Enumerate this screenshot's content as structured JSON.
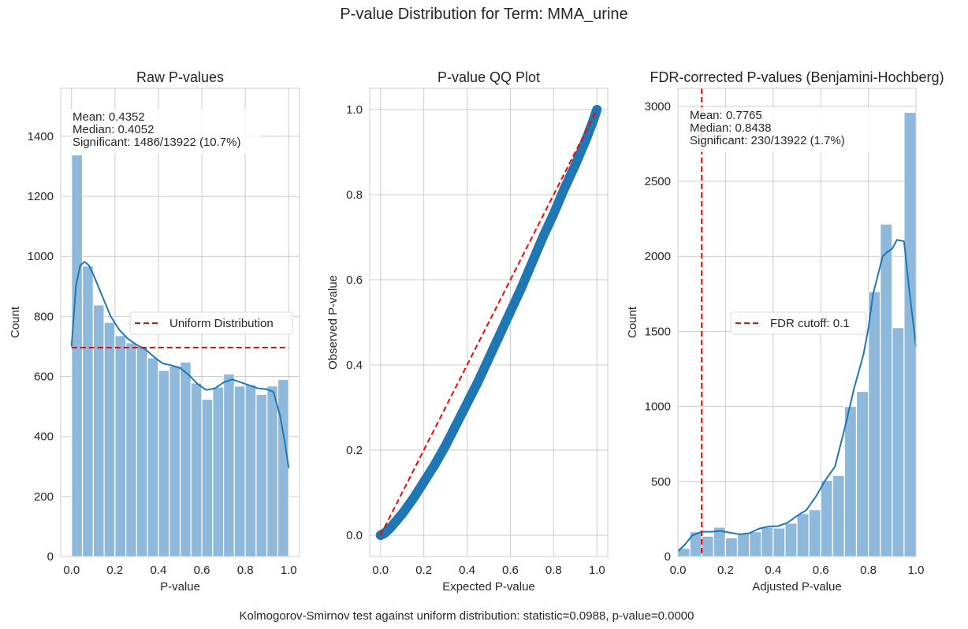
{
  "suptitle": "P-value Distribution for Term: MMA_urine",
  "footer": "Kolmogorov-Smirnov test against uniform distribution: statistic=0.0988, p-value=0.0000",
  "colors": {
    "bar": "#8fb9db",
    "kde": "#1f77b4",
    "ref": "#ff0000",
    "grid": "#cccccc",
    "scatter": "#1f77b4"
  },
  "chart_data": [
    {
      "type": "bar",
      "title": "Raw P-values",
      "xlabel": "P-value",
      "ylabel": "Count",
      "xlim": [
        -0.05,
        1.05
      ],
      "ylim": [
        0,
        1560
      ],
      "xticks": [
        "0.0",
        "0.2",
        "0.4",
        "0.6",
        "0.8",
        "1.0"
      ],
      "xtick_values": [
        0,
        0.2,
        0.4,
        0.6,
        0.8,
        1.0
      ],
      "yticks": [
        "0",
        "200",
        "400",
        "600",
        "800",
        "1000",
        "1200",
        "1400"
      ],
      "ytick_values": [
        0,
        200,
        400,
        600,
        800,
        1000,
        1200,
        1400
      ],
      "bin_edges_range": [
        0,
        1
      ],
      "values": [
        1338,
        968,
        838,
        780,
        736,
        712,
        700,
        662,
        620,
        635,
        648,
        578,
        524,
        565,
        608,
        568,
        572,
        540,
        568,
        590
      ],
      "kde": {
        "x": [
          0,
          0.02,
          0.04,
          0.06,
          0.08,
          0.1,
          0.14,
          0.18,
          0.22,
          0.26,
          0.3,
          0.34,
          0.38,
          0.42,
          0.46,
          0.5,
          0.54,
          0.58,
          0.62,
          0.66,
          0.7,
          0.74,
          0.78,
          0.82,
          0.86,
          0.9,
          0.93,
          0.96,
          0.98,
          1.0
        ],
        "y": [
          700,
          900,
          970,
          982,
          970,
          940,
          870,
          800,
          755,
          725,
          705,
          690,
          665,
          643,
          637,
          628,
          605,
          575,
          555,
          560,
          580,
          590,
          580,
          570,
          560,
          557,
          548,
          470,
          390,
          295
        ]
      },
      "reference_line": {
        "label": "Uniform Distribution",
        "y": 696,
        "x_range": [
          0,
          1
        ]
      },
      "legend": {
        "entries": [
          "Uniform Distribution"
        ],
        "placement": "center-right"
      },
      "annotation": [
        "Mean: 0.4352",
        "Median: 0.4052",
        "Significant: 1486/13922 (10.7%)"
      ],
      "grid": true
    },
    {
      "type": "scatter",
      "title": "P-value QQ Plot",
      "xlabel": "Expected P-value",
      "ylabel": "Observed P-value",
      "xlim": [
        -0.05,
        1.05
      ],
      "ylim": [
        -0.05,
        1.05
      ],
      "xticks": [
        "0.0",
        "0.2",
        "0.4",
        "0.6",
        "0.8",
        "1.0"
      ],
      "xtick_values": [
        0,
        0.2,
        0.4,
        0.6,
        0.8,
        1.0
      ],
      "yticks": [
        "0.0",
        "0.2",
        "0.4",
        "0.6",
        "0.8",
        "1.0"
      ],
      "ytick_values": [
        0,
        0.2,
        0.4,
        0.6,
        0.8,
        1.0
      ],
      "points": {
        "x": [
          0,
          0.02,
          0.05,
          0.1,
          0.15,
          0.2,
          0.25,
          0.3,
          0.35,
          0.4,
          0.45,
          0.5,
          0.55,
          0.6,
          0.65,
          0.7,
          0.75,
          0.8,
          0.85,
          0.9,
          0.95,
          0.98,
          1.0
        ],
        "y": [
          0,
          0.005,
          0.02,
          0.05,
          0.085,
          0.125,
          0.165,
          0.21,
          0.26,
          0.31,
          0.36,
          0.415,
          0.47,
          0.525,
          0.58,
          0.64,
          0.7,
          0.755,
          0.815,
          0.87,
          0.93,
          0.97,
          1.0
        ]
      },
      "reference_line": {
        "x": [
          0,
          1
        ],
        "y": [
          0,
          1
        ]
      },
      "grid": true
    },
    {
      "type": "bar",
      "title": "FDR-corrected P-values (Benjamini-Hochberg)",
      "xlabel": "Adjusted P-value",
      "ylabel": "Count",
      "xlim": [
        0,
        1
      ],
      "ylim": [
        0,
        3120
      ],
      "xticks": [
        "0.0",
        "0.2",
        "0.4",
        "0.6",
        "0.8",
        "1.0"
      ],
      "xtick_values": [
        0,
        0.2,
        0.4,
        0.6,
        0.8,
        1.0
      ],
      "yticks": [
        "0",
        "500",
        "1000",
        "1500",
        "2000",
        "2500",
        "3000"
      ],
      "ytick_values": [
        0,
        500,
        1000,
        1500,
        2000,
        2500,
        3000
      ],
      "bin_edges_range": [
        0,
        1
      ],
      "values": [
        55,
        165,
        135,
        195,
        125,
        150,
        165,
        195,
        190,
        222,
        285,
        312,
        508,
        540,
        1000,
        1100,
        1765,
        2215,
        1525,
        2960
      ],
      "kde": {
        "x": [
          0,
          0.03,
          0.06,
          0.1,
          0.14,
          0.18,
          0.22,
          0.26,
          0.3,
          0.34,
          0.38,
          0.42,
          0.46,
          0.5,
          0.54,
          0.58,
          0.62,
          0.66,
          0.7,
          0.74,
          0.78,
          0.8,
          0.82,
          0.86,
          0.88,
          0.9,
          0.92,
          0.95,
          0.97,
          1.0
        ],
        "y": [
          35,
          80,
          140,
          165,
          165,
          170,
          158,
          148,
          155,
          185,
          200,
          202,
          225,
          270,
          310,
          400,
          510,
          600,
          850,
          1120,
          1350,
          1520,
          1750,
          2000,
          2030,
          2050,
          2110,
          2100,
          1800,
          1400
        ]
      },
      "reference_line": {
        "label": "FDR cutoff: 0.1",
        "x": 0.1
      },
      "legend": {
        "entries": [
          "FDR cutoff: 0.1"
        ],
        "placement": "center-right"
      },
      "annotation": [
        "Mean: 0.7765",
        "Median: 0.8438",
        "Significant: 230/13922 (1.7%)"
      ],
      "grid": true
    }
  ]
}
